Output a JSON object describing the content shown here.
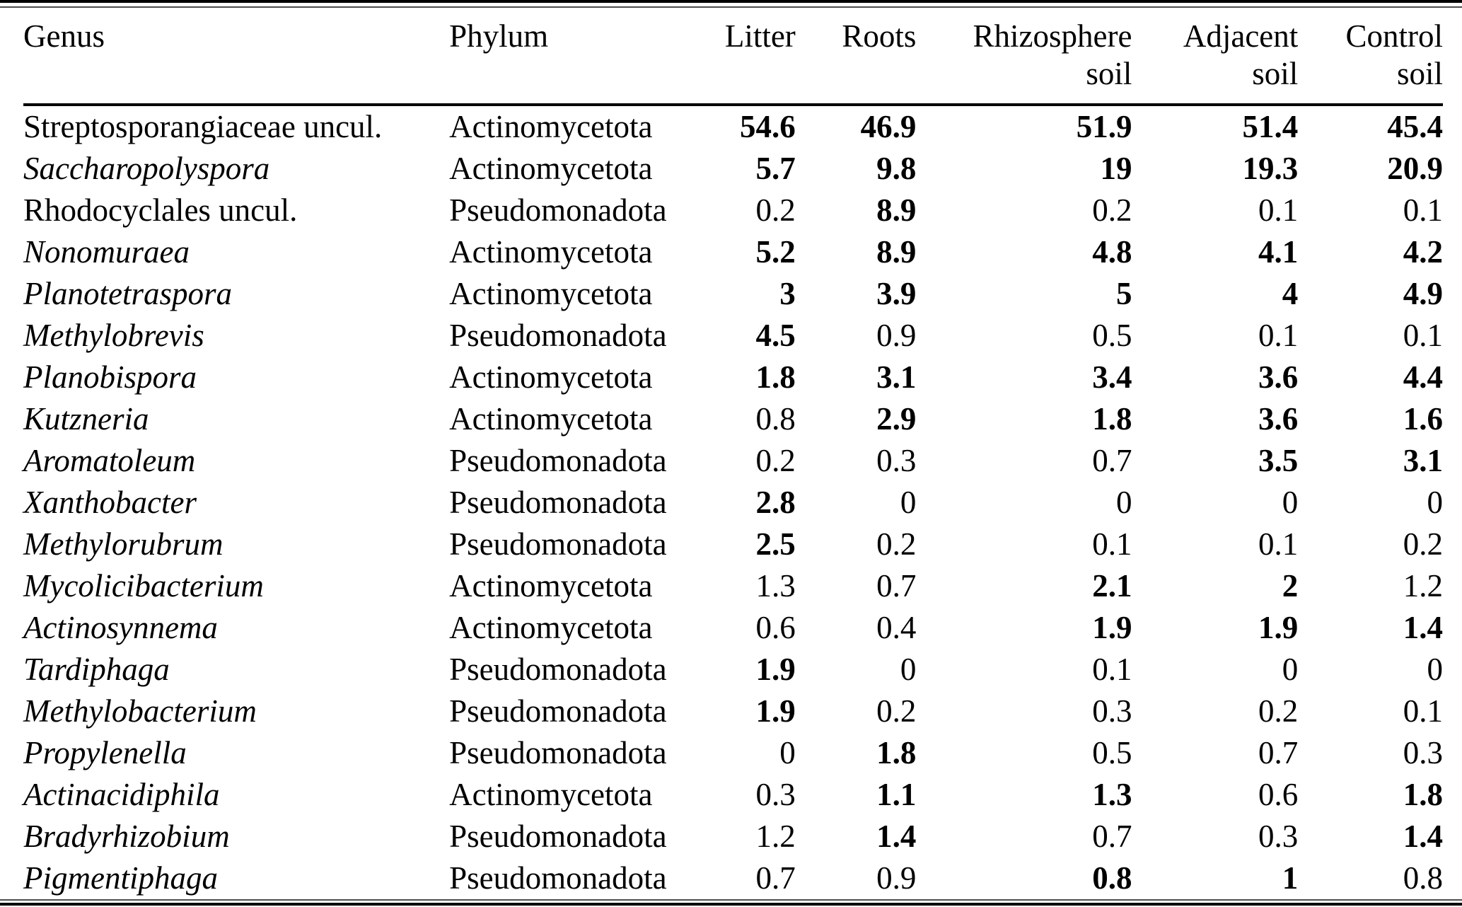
{
  "table": {
    "columns": [
      {
        "key": "genus",
        "line1": "Genus",
        "line2": "",
        "align": "left"
      },
      {
        "key": "phylum",
        "line1": "Phylum",
        "line2": "",
        "align": "left"
      },
      {
        "key": "litter",
        "line1": "Litter",
        "line2": "",
        "align": "right"
      },
      {
        "key": "roots",
        "line1": "Roots",
        "line2": "",
        "align": "right"
      },
      {
        "key": "rhizosphere-soil",
        "line1": "Rhizosphere",
        "line2": "soil",
        "align": "right"
      },
      {
        "key": "adjacent-soil",
        "line1": "Adjacent",
        "line2": "soil",
        "align": "right"
      },
      {
        "key": "control-soil",
        "line1": "Control",
        "line2": "soil",
        "align": "right"
      }
    ],
    "rows": [
      {
        "genus": "Streptosporangiaceae uncul.",
        "italic": false,
        "phylum": "Actinomycetota",
        "values": [
          {
            "t": "54.6",
            "b": true
          },
          {
            "t": "46.9",
            "b": true
          },
          {
            "t": "51.9",
            "b": true
          },
          {
            "t": "51.4",
            "b": true
          },
          {
            "t": "45.4",
            "b": true
          }
        ]
      },
      {
        "genus": "Saccharopolyspora",
        "italic": true,
        "phylum": "Actinomycetota",
        "values": [
          {
            "t": "5.7",
            "b": true
          },
          {
            "t": "9.8",
            "b": true
          },
          {
            "t": "19",
            "b": true
          },
          {
            "t": "19.3",
            "b": true
          },
          {
            "t": "20.9",
            "b": true
          }
        ]
      },
      {
        "genus": "Rhodocyclales uncul.",
        "italic": false,
        "phylum": "Pseudomonadota",
        "values": [
          {
            "t": "0.2",
            "b": false
          },
          {
            "t": "8.9",
            "b": true
          },
          {
            "t": "0.2",
            "b": false
          },
          {
            "t": "0.1",
            "b": false
          },
          {
            "t": "0.1",
            "b": false
          }
        ]
      },
      {
        "genus": "Nonomuraea",
        "italic": true,
        "phylum": "Actinomycetota",
        "values": [
          {
            "t": "5.2",
            "b": true
          },
          {
            "t": "8.9",
            "b": true
          },
          {
            "t": "4.8",
            "b": true
          },
          {
            "t": "4.1",
            "b": true
          },
          {
            "t": "4.2",
            "b": true
          }
        ]
      },
      {
        "genus": "Planotetraspora",
        "italic": true,
        "phylum": "Actinomycetota",
        "values": [
          {
            "t": "3",
            "b": true
          },
          {
            "t": "3.9",
            "b": true
          },
          {
            "t": "5",
            "b": true
          },
          {
            "t": "4",
            "b": true
          },
          {
            "t": "4.9",
            "b": true
          }
        ]
      },
      {
        "genus": "Methylobrevis",
        "italic": true,
        "phylum": "Pseudomonadota",
        "values": [
          {
            "t": "4.5",
            "b": true
          },
          {
            "t": "0.9",
            "b": false
          },
          {
            "t": "0.5",
            "b": false
          },
          {
            "t": "0.1",
            "b": false
          },
          {
            "t": "0.1",
            "b": false
          }
        ]
      },
      {
        "genus": "Planobispora",
        "italic": true,
        "phylum": "Actinomycetota",
        "values": [
          {
            "t": "1.8",
            "b": true
          },
          {
            "t": "3.1",
            "b": true
          },
          {
            "t": "3.4",
            "b": true
          },
          {
            "t": "3.6",
            "b": true
          },
          {
            "t": "4.4",
            "b": true
          }
        ]
      },
      {
        "genus": "Kutzneria",
        "italic": true,
        "phylum": "Actinomycetota",
        "values": [
          {
            "t": "0.8",
            "b": false
          },
          {
            "t": "2.9",
            "b": true
          },
          {
            "t": "1.8",
            "b": true
          },
          {
            "t": "3.6",
            "b": true
          },
          {
            "t": "1.6",
            "b": true
          }
        ]
      },
      {
        "genus": "Aromatoleum",
        "italic": true,
        "phylum": "Pseudomonadota",
        "values": [
          {
            "t": "0.2",
            "b": false
          },
          {
            "t": "0.3",
            "b": false
          },
          {
            "t": "0.7",
            "b": false
          },
          {
            "t": "3.5",
            "b": true
          },
          {
            "t": "3.1",
            "b": true
          }
        ]
      },
      {
        "genus": "Xanthobacter",
        "italic": true,
        "phylum": "Pseudomonadota",
        "values": [
          {
            "t": "2.8",
            "b": true
          },
          {
            "t": "0",
            "b": false
          },
          {
            "t": "0",
            "b": false
          },
          {
            "t": "0",
            "b": false
          },
          {
            "t": "0",
            "b": false
          }
        ]
      },
      {
        "genus": "Methylorubrum",
        "italic": true,
        "phylum": "Pseudomonadota",
        "values": [
          {
            "t": "2.5",
            "b": true
          },
          {
            "t": "0.2",
            "b": false
          },
          {
            "t": "0.1",
            "b": false
          },
          {
            "t": "0.1",
            "b": false
          },
          {
            "t": "0.2",
            "b": false
          }
        ]
      },
      {
        "genus": "Mycolicibacterium",
        "italic": true,
        "phylum": "Actinomycetota",
        "values": [
          {
            "t": "1.3",
            "b": false
          },
          {
            "t": "0.7",
            "b": false
          },
          {
            "t": "2.1",
            "b": true
          },
          {
            "t": "2",
            "b": true
          },
          {
            "t": "1.2",
            "b": false
          }
        ]
      },
      {
        "genus": "Actinosynnema",
        "italic": true,
        "phylum": "Actinomycetota",
        "values": [
          {
            "t": "0.6",
            "b": false
          },
          {
            "t": "0.4",
            "b": false
          },
          {
            "t": "1.9",
            "b": true
          },
          {
            "t": "1.9",
            "b": true
          },
          {
            "t": "1.4",
            "b": true
          }
        ]
      },
      {
        "genus": "Tardiphaga",
        "italic": true,
        "phylum": "Pseudomonadota",
        "values": [
          {
            "t": "1.9",
            "b": true
          },
          {
            "t": "0",
            "b": false
          },
          {
            "t": "0.1",
            "b": false
          },
          {
            "t": "0",
            "b": false
          },
          {
            "t": "0",
            "b": false
          }
        ]
      },
      {
        "genus": "Methylobacterium",
        "italic": true,
        "phylum": "Pseudomonadota",
        "values": [
          {
            "t": "1.9",
            "b": true
          },
          {
            "t": "0.2",
            "b": false
          },
          {
            "t": "0.3",
            "b": false
          },
          {
            "t": "0.2",
            "b": false
          },
          {
            "t": "0.1",
            "b": false
          }
        ]
      },
      {
        "genus": "Propylenella",
        "italic": true,
        "phylum": "Pseudomonadota",
        "values": [
          {
            "t": "0",
            "b": false
          },
          {
            "t": "1.8",
            "b": true
          },
          {
            "t": "0.5",
            "b": false
          },
          {
            "t": "0.7",
            "b": false
          },
          {
            "t": "0.3",
            "b": false
          }
        ]
      },
      {
        "genus": "Actinacidiphila",
        "italic": true,
        "phylum": "Actinomycetota",
        "values": [
          {
            "t": "0.3",
            "b": false
          },
          {
            "t": "1.1",
            "b": true
          },
          {
            "t": "1.3",
            "b": true
          },
          {
            "t": "0.6",
            "b": false
          },
          {
            "t": "1.8",
            "b": true
          }
        ]
      },
      {
        "genus": "Bradyrhizobium",
        "italic": true,
        "phylum": "Pseudomonadota",
        "values": [
          {
            "t": "1.2",
            "b": false
          },
          {
            "t": "1.4",
            "b": true
          },
          {
            "t": "0.7",
            "b": false
          },
          {
            "t": "0.3",
            "b": false
          },
          {
            "t": "1.4",
            "b": true
          }
        ]
      },
      {
        "genus": "Pigmentiphaga",
        "italic": true,
        "phylum": "Pseudomonadota",
        "values": [
          {
            "t": "0.7",
            "b": false
          },
          {
            "t": "0.9",
            "b": false
          },
          {
            "t": "0.8",
            "b": true
          },
          {
            "t": "1",
            "b": true
          },
          {
            "t": "0.8",
            "b": false
          }
        ]
      }
    ]
  }
}
